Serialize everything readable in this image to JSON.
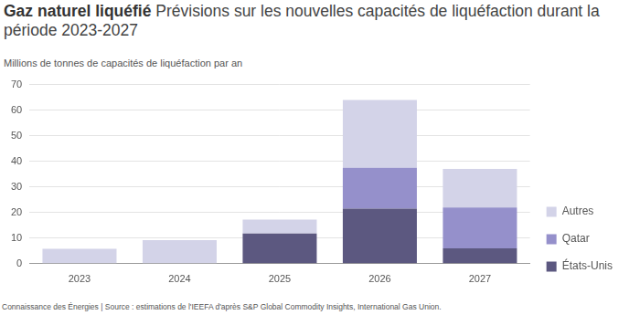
{
  "chart_data": {
    "type": "bar",
    "title": "Gaz naturel liquéfié",
    "subtitle": "Prévisions sur les nouvelles capacités de liquéfaction durant la période 2023-2027",
    "ylabel": "Millions de tonnes de capacités de liquéfaction par an",
    "source": "Connaissance des Énergies | Source : estimations de l'IEEFA d'après S&P Global Commodity Insights, International Gas Union.",
    "categories": [
      "2023",
      "2024",
      "2025",
      "2026",
      "2027"
    ],
    "series": [
      {
        "name": "États-Unis",
        "color": "#5c5880",
        "values": [
          0,
          0,
          11.8,
          21.5,
          6
        ]
      },
      {
        "name": "Qatar",
        "color": "#9590cb",
        "values": [
          0,
          0,
          0,
          16,
          16
        ]
      },
      {
        "name": "Autres",
        "color": "#d3d3e8",
        "values": [
          5.8,
          9.2,
          5.4,
          26.5,
          15
        ]
      }
    ],
    "ylim": [
      0,
      70
    ],
    "yticks": [
      0,
      10,
      20,
      30,
      40,
      50,
      60,
      70
    ],
    "stacked": true,
    "grid": true,
    "legend": "right"
  }
}
